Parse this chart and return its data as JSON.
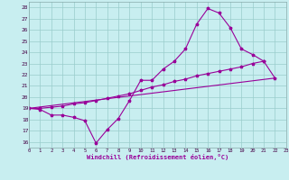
{
  "xlabel": "Windchill (Refroidissement éolien,°C)",
  "xlim": [
    0,
    23
  ],
  "ylim": [
    15.5,
    28.5
  ],
  "xticks": [
    0,
    1,
    2,
    3,
    4,
    5,
    6,
    7,
    8,
    9,
    10,
    11,
    12,
    13,
    14,
    15,
    16,
    17,
    18,
    19,
    20,
    21,
    22,
    23
  ],
  "yticks": [
    16,
    17,
    18,
    19,
    20,
    21,
    22,
    23,
    24,
    25,
    26,
    27,
    28
  ],
  "line_color": "#990099",
  "bg_color": "#c8eef0",
  "grid_color": "#99cccc",
  "lines": [
    {
      "x": [
        0,
        1,
        2,
        3,
        4,
        5,
        6,
        7,
        8,
        9,
        10,
        11,
        12,
        13,
        14,
        15,
        16,
        17,
        18,
        19,
        20,
        21,
        22
      ],
      "y": [
        19.0,
        18.9,
        18.4,
        18.4,
        18.2,
        17.9,
        15.9,
        17.1,
        18.1,
        19.7,
        21.5,
        21.5,
        22.5,
        23.2,
        24.3,
        26.5,
        27.9,
        27.5,
        26.2,
        24.3,
        23.8,
        23.2,
        21.7
      ]
    },
    {
      "x": [
        0,
        1,
        2,
        3,
        4,
        5,
        6,
        7,
        8,
        9,
        10,
        11,
        12,
        13,
        14,
        15,
        16,
        17,
        18,
        19,
        20,
        21
      ],
      "y": [
        19.0,
        19.0,
        19.1,
        19.2,
        19.4,
        19.5,
        19.7,
        19.9,
        20.1,
        20.3,
        20.6,
        20.9,
        21.1,
        21.4,
        21.6,
        21.9,
        22.1,
        22.3,
        22.5,
        22.7,
        23.0,
        23.2
      ]
    },
    {
      "x": [
        0,
        22
      ],
      "y": [
        19.0,
        21.7
      ]
    }
  ]
}
